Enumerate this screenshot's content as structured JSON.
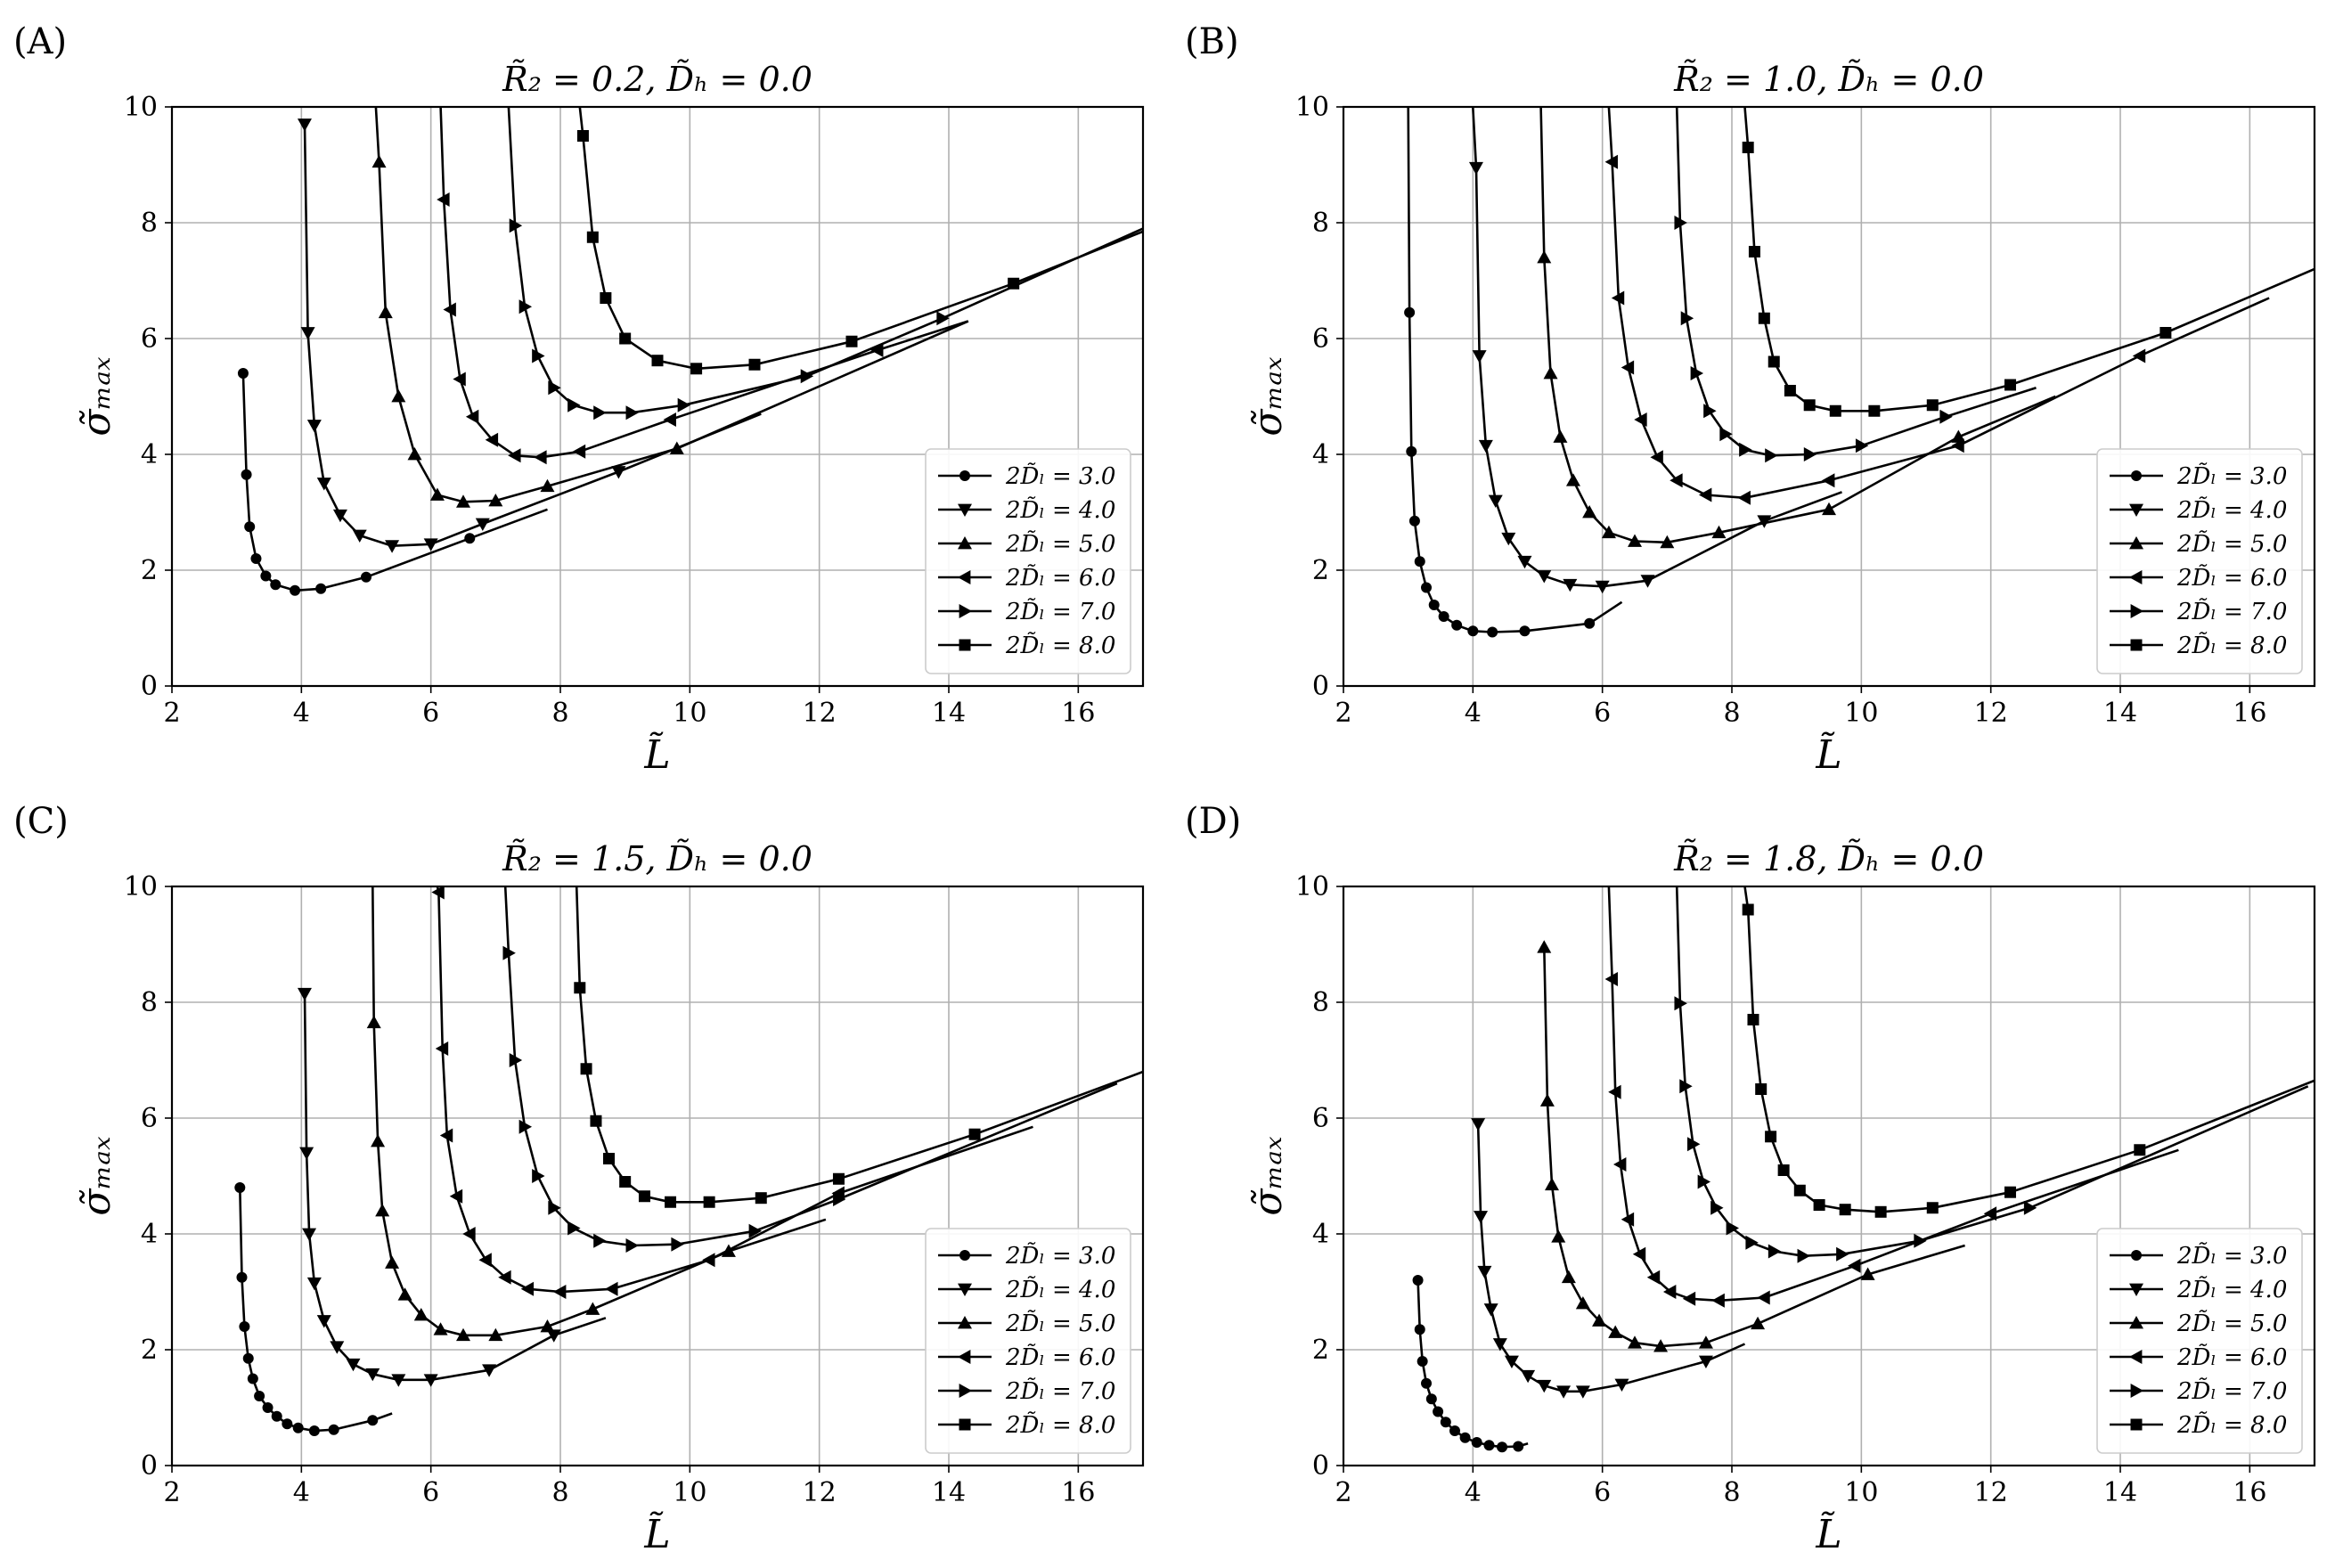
{
  "chart_data": [
    {
      "panel_label": "(A)",
      "type": "line",
      "title": "R̃₂ = 0.2, D̃ₕ = 0.0",
      "xlabel": "L̃",
      "ylabel": "σ̃ₘₐₓ",
      "xlim": [
        2,
        17
      ],
      "ylim": [
        0,
        10
      ],
      "xticks": [
        "2",
        "4",
        "6",
        "8",
        "10",
        "12",
        "14",
        "16"
      ],
      "yticks": [
        "0",
        "2",
        "4",
        "6",
        "8",
        "10"
      ],
      "grid": true,
      "legend_position": "lower right",
      "series": [
        {
          "name": "2D̃ₗ = 3.0",
          "marker": "circle",
          "x": [
            3.1,
            3.15,
            3.2,
            3.3,
            3.45,
            3.6,
            3.9,
            4.3,
            5.0,
            6.6,
            7.8
          ],
          "y": [
            5.4,
            3.65,
            2.75,
            2.2,
            1.9,
            1.75,
            1.65,
            1.68,
            1.88,
            2.55,
            3.05
          ]
        },
        {
          "name": "2D̃ₗ = 4.0",
          "marker": "triangle-down",
          "x": [
            4.05,
            4.1,
            4.2,
            4.35,
            4.6,
            4.9,
            5.4,
            6.0,
            6.8,
            8.9,
            11.1
          ],
          "y": [
            9.7,
            6.1,
            4.5,
            3.5,
            2.95,
            2.6,
            2.42,
            2.45,
            2.8,
            3.7,
            4.7
          ]
        },
        {
          "name": "2D̃ₗ = 5.0",
          "marker": "triangle-up",
          "x": [
            5.15,
            5.2,
            5.3,
            5.5,
            5.75,
            6.1,
            6.5,
            7.0,
            7.8,
            9.8,
            14.3
          ],
          "y": [
            10.0,
            9.05,
            6.45,
            5.0,
            4.0,
            3.3,
            3.18,
            3.2,
            3.45,
            4.1,
            6.3
          ]
        },
        {
          "name": "2D̃ₗ = 6.0",
          "marker": "triangle-left",
          "x": [
            6.15,
            6.2,
            6.3,
            6.45,
            6.65,
            6.95,
            7.3,
            7.7,
            8.3,
            9.7,
            12.9,
            14.3
          ],
          "y": [
            10.0,
            8.4,
            6.5,
            5.3,
            4.65,
            4.25,
            3.98,
            3.95,
            4.05,
            4.6,
            5.8,
            6.3
          ]
        },
        {
          "name": "2D̃ₗ = 7.0",
          "marker": "triangle-right",
          "x": [
            7.2,
            7.3,
            7.45,
            7.65,
            7.9,
            8.2,
            8.6,
            9.1,
            9.9,
            11.8,
            13.9,
            17.0
          ],
          "y": [
            10.0,
            7.95,
            6.55,
            5.7,
            5.15,
            4.85,
            4.72,
            4.72,
            4.85,
            5.35,
            6.35,
            7.9
          ]
        },
        {
          "name": "2D̃ₗ = 8.0",
          "marker": "square",
          "x": [
            8.3,
            8.35,
            8.5,
            8.7,
            9.0,
            9.5,
            10.1,
            11.0,
            12.5,
            15.0,
            17.0
          ],
          "y": [
            10.0,
            9.5,
            7.75,
            6.7,
            6.0,
            5.62,
            5.48,
            5.55,
            5.95,
            6.95,
            7.85
          ]
        }
      ]
    },
    {
      "panel_label": "(B)",
      "type": "line",
      "title": "R̃₂ = 1.0, D̃ₕ = 0.0",
      "xlabel": "L̃",
      "ylabel": "σ̃ₘₐₓ",
      "xlim": [
        2,
        17
      ],
      "ylim": [
        0,
        10
      ],
      "xticks": [
        "2",
        "4",
        "6",
        "8",
        "10",
        "12",
        "14",
        "16"
      ],
      "yticks": [
        "0",
        "2",
        "4",
        "6",
        "8",
        "10"
      ],
      "grid": true,
      "legend_position": "lower right",
      "series": [
        {
          "name": "2D̃ₗ = 3.0",
          "marker": "circle",
          "x": [
            3.0,
            3.02,
            3.05,
            3.1,
            3.18,
            3.28,
            3.4,
            3.55,
            3.75,
            4.0,
            4.3,
            4.8,
            5.8,
            6.3
          ],
          "y": [
            10.0,
            6.45,
            4.05,
            2.85,
            2.15,
            1.7,
            1.4,
            1.2,
            1.05,
            0.95,
            0.93,
            0.95,
            1.08,
            1.45
          ],
          "y_end": 1.7
        },
        {
          "name": "2D̃ₗ = 4.0",
          "marker": "triangle-down",
          "x": [
            4.0,
            4.05,
            4.1,
            4.2,
            4.35,
            4.55,
            4.8,
            5.1,
            5.5,
            6.0,
            6.7,
            8.5,
            9.7
          ],
          "y": [
            10.0,
            8.95,
            5.7,
            4.15,
            3.2,
            2.55,
            2.15,
            1.9,
            1.75,
            1.72,
            1.82,
            2.85,
            3.35
          ]
        },
        {
          "name": "2D̃ₗ = 5.0",
          "marker": "triangle-up",
          "x": [
            5.05,
            5.1,
            5.2,
            5.35,
            5.55,
            5.8,
            6.1,
            6.5,
            7.0,
            7.8,
            9.5,
            11.5,
            13.0
          ],
          "y": [
            10.0,
            7.4,
            5.4,
            4.3,
            3.55,
            3.0,
            2.65,
            2.5,
            2.48,
            2.65,
            3.05,
            4.3,
            5.0
          ]
        },
        {
          "name": "2D̃ₗ = 6.0",
          "marker": "triangle-left",
          "x": [
            6.1,
            6.15,
            6.25,
            6.4,
            6.6,
            6.85,
            7.15,
            7.6,
            8.2,
            9.5,
            11.5,
            14.3,
            16.3
          ],
          "y": [
            10.0,
            9.05,
            6.7,
            5.5,
            4.6,
            3.95,
            3.55,
            3.3,
            3.25,
            3.55,
            4.15,
            5.7,
            6.7
          ]
        },
        {
          "name": "2D̃ₗ = 7.0",
          "marker": "triangle-right",
          "x": [
            7.15,
            7.2,
            7.3,
            7.45,
            7.65,
            7.9,
            8.2,
            8.6,
            9.2,
            10.0,
            11.3,
            12.7
          ],
          "y": [
            10.0,
            8.0,
            6.35,
            5.4,
            4.75,
            4.35,
            4.08,
            3.98,
            4.0,
            4.15,
            4.65,
            5.15
          ]
        },
        {
          "name": "2D̃ₗ = 8.0",
          "marker": "square",
          "x": [
            8.2,
            8.25,
            8.35,
            8.5,
            8.65,
            8.9,
            9.2,
            9.6,
            10.2,
            11.1,
            12.3,
            14.7,
            17.0
          ],
          "y": [
            10.0,
            9.3,
            7.5,
            6.35,
            5.6,
            5.1,
            4.85,
            4.75,
            4.75,
            4.85,
            5.2,
            6.1,
            7.2
          ]
        }
      ]
    },
    {
      "panel_label": "(C)",
      "type": "line",
      "title": "R̃₂ = 1.5, D̃ₕ = 0.0",
      "xlabel": "L̃",
      "ylabel": "σ̃ₘₐₓ",
      "xlim": [
        2,
        17
      ],
      "ylim": [
        0,
        10
      ],
      "xticks": [
        "2",
        "4",
        "6",
        "8",
        "10",
        "12",
        "14",
        "16"
      ],
      "yticks": [
        "0",
        "2",
        "4",
        "6",
        "8",
        "10"
      ],
      "grid": true,
      "legend_position": "lower right",
      "series": [
        {
          "name": "2D̃ₗ = 3.0",
          "marker": "circle",
          "x": [
            3.05,
            3.08,
            3.12,
            3.18,
            3.25,
            3.35,
            3.48,
            3.62,
            3.78,
            3.95,
            4.2,
            4.5,
            5.1,
            5.4
          ],
          "y": [
            4.8,
            3.25,
            2.4,
            1.85,
            1.5,
            1.2,
            1.0,
            0.85,
            0.72,
            0.65,
            0.6,
            0.62,
            0.78,
            0.9
          ]
        },
        {
          "name": "2D̃ₗ = 4.0",
          "marker": "triangle-down",
          "x": [
            4.05,
            4.08,
            4.12,
            4.2,
            4.35,
            4.55,
            4.8,
            5.1,
            5.5,
            6.0,
            6.9,
            7.9,
            8.7
          ],
          "y": [
            8.15,
            5.4,
            4.0,
            3.15,
            2.5,
            2.05,
            1.75,
            1.58,
            1.48,
            1.48,
            1.65,
            2.25,
            2.55
          ]
        },
        {
          "name": "2D̃ₗ = 5.0",
          "marker": "triangle-up",
          "x": [
            5.1,
            5.12,
            5.18,
            5.25,
            5.4,
            5.6,
            5.85,
            6.15,
            6.5,
            7.0,
            7.8,
            8.5,
            10.6,
            12.1
          ],
          "y": [
            10.0,
            7.65,
            5.6,
            4.4,
            3.5,
            2.95,
            2.6,
            2.35,
            2.25,
            2.25,
            2.4,
            2.7,
            3.7,
            4.25
          ]
        },
        {
          "name": "2D̃ₗ = 6.0",
          "marker": "triangle-left",
          "x": [
            6.1,
            6.12,
            6.18,
            6.25,
            6.4,
            6.6,
            6.85,
            7.15,
            7.5,
            8.0,
            8.8,
            10.3,
            12.3,
            15.3
          ],
          "y": [
            10.0,
            9.9,
            7.2,
            5.7,
            4.65,
            4.0,
            3.55,
            3.25,
            3.05,
            3.0,
            3.05,
            3.55,
            4.7,
            5.85
          ]
        },
        {
          "name": "2D̃ₗ = 7.0",
          "marker": "triangle-right",
          "x": [
            7.15,
            7.2,
            7.3,
            7.45,
            7.65,
            7.9,
            8.2,
            8.6,
            9.1,
            9.8,
            11.0,
            12.3,
            16.6
          ],
          "y": [
            10.0,
            8.85,
            7.0,
            5.85,
            5.0,
            4.45,
            4.1,
            3.88,
            3.8,
            3.82,
            4.05,
            4.6,
            6.6
          ]
        },
        {
          "name": "2D̃ₗ = 8.0",
          "marker": "square",
          "x": [
            8.25,
            8.3,
            8.4,
            8.55,
            8.75,
            9.0,
            9.3,
            9.7,
            10.3,
            11.1,
            12.3,
            14.4,
            17.0
          ],
          "y": [
            10.0,
            8.25,
            6.85,
            5.95,
            5.3,
            4.9,
            4.65,
            4.55,
            4.55,
            4.62,
            4.95,
            5.72,
            6.8
          ]
        }
      ]
    },
    {
      "panel_label": "(D)",
      "type": "line",
      "title": "R̃₂ = 1.8, D̃ₕ = 0.0",
      "xlabel": "L̃",
      "ylabel": "σ̃ₘₐₓ",
      "xlim": [
        2,
        17
      ],
      "ylim": [
        0,
        10
      ],
      "xticks": [
        "2",
        "4",
        "6",
        "8",
        "10",
        "12",
        "14",
        "16"
      ],
      "yticks": [
        "0",
        "2",
        "4",
        "6",
        "8",
        "10"
      ],
      "grid": true,
      "legend_position": "lower right",
      "series": [
        {
          "name": "2D̃ₗ = 3.0",
          "marker": "circle",
          "x": [
            3.15,
            3.18,
            3.22,
            3.28,
            3.36,
            3.46,
            3.58,
            3.72,
            3.88,
            4.06,
            4.25,
            4.45,
            4.7,
            4.85
          ],
          "y": [
            3.2,
            2.35,
            1.8,
            1.42,
            1.15,
            0.93,
            0.75,
            0.6,
            0.48,
            0.4,
            0.35,
            0.32,
            0.33,
            0.38
          ]
        },
        {
          "name": "2D̃ₗ = 4.0",
          "marker": "triangle-down",
          "x": [
            4.08,
            4.12,
            4.18,
            4.28,
            4.42,
            4.6,
            4.85,
            5.1,
            5.4,
            5.7,
            6.3,
            7.6,
            8.2
          ],
          "y": [
            5.9,
            4.3,
            3.35,
            2.7,
            2.1,
            1.8,
            1.55,
            1.38,
            1.28,
            1.28,
            1.4,
            1.8,
            2.1
          ]
        },
        {
          "name": "2D̃ₗ = 5.0",
          "marker": "triangle-up",
          "x": [
            5.1,
            5.15,
            5.22,
            5.32,
            5.48,
            5.7,
            5.95,
            6.2,
            6.5,
            6.9,
            7.6,
            8.4,
            10.1,
            11.6
          ],
          "y": [
            8.95,
            6.3,
            4.85,
            3.95,
            3.25,
            2.8,
            2.5,
            2.3,
            2.12,
            2.06,
            2.12,
            2.45,
            3.3,
            3.8
          ]
        },
        {
          "name": "2D̃ₗ = 6.0",
          "marker": "triangle-left",
          "x": [
            6.1,
            6.15,
            6.2,
            6.28,
            6.4,
            6.58,
            6.8,
            7.05,
            7.35,
            7.8,
            8.5,
            9.9,
            12.0,
            14.9
          ],
          "y": [
            10.0,
            8.4,
            6.45,
            5.2,
            4.25,
            3.65,
            3.25,
            3.0,
            2.88,
            2.85,
            2.9,
            3.45,
            4.35,
            5.45
          ]
        },
        {
          "name": "2D̃ₗ = 7.0",
          "marker": "triangle-right",
          "x": [
            7.15,
            7.2,
            7.28,
            7.4,
            7.56,
            7.76,
            8.0,
            8.3,
            8.65,
            9.1,
            9.7,
            10.9,
            12.6,
            16.9
          ],
          "y": [
            10.0,
            7.98,
            6.55,
            5.55,
            4.9,
            4.45,
            4.1,
            3.85,
            3.7,
            3.62,
            3.65,
            3.88,
            4.45,
            6.55
          ]
        },
        {
          "name": "2D̃ₗ = 8.0",
          "marker": "square",
          "x": [
            8.2,
            8.25,
            8.33,
            8.45,
            8.6,
            8.8,
            9.05,
            9.35,
            9.75,
            10.3,
            11.1,
            12.3,
            14.3,
            17.0
          ],
          "y": [
            10.0,
            9.6,
            7.7,
            6.5,
            5.68,
            5.1,
            4.75,
            4.5,
            4.42,
            4.38,
            4.45,
            4.72,
            5.45,
            6.65
          ]
        }
      ]
    }
  ]
}
